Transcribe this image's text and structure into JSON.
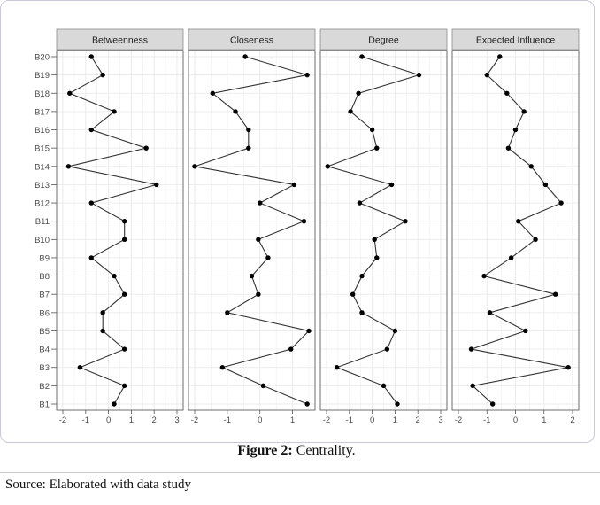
{
  "chart_data": {
    "type": "line",
    "orientation": "horizontal-profile",
    "categories": [
      "B20",
      "B19",
      "B18",
      "B17",
      "B16",
      "B15",
      "B14",
      "B13",
      "B12",
      "B11",
      "B10",
      "B9",
      "B8",
      "B7",
      "B6",
      "B5",
      "B4",
      "B3",
      "B2",
      "B1"
    ],
    "facets": [
      {
        "name": "Betweenness",
        "xlim": [
          -2,
          3
        ],
        "xticks": [
          "-2",
          "-1",
          "0",
          "1",
          "2",
          "3"
        ],
        "values": [
          -0.75,
          -0.25,
          -1.7,
          0.25,
          -0.75,
          1.65,
          -1.75,
          2.1,
          -0.75,
          0.7,
          0.7,
          -0.75,
          0.25,
          0.7,
          -0.25,
          -0.25,
          0.7,
          -1.25,
          0.7,
          0.25
        ]
      },
      {
        "name": "Closeness",
        "xlim": [
          -2,
          1.5
        ],
        "xticks": [
          "-2",
          "-1",
          "0",
          "1"
        ],
        "values": [
          -0.45,
          1.45,
          -1.45,
          -0.75,
          -0.35,
          -0.35,
          -2.0,
          1.05,
          0.0,
          1.35,
          -0.05,
          0.25,
          -0.25,
          -0.05,
          -1.0,
          1.5,
          0.95,
          -1.15,
          0.1,
          1.45
        ]
      },
      {
        "name": "Degree",
        "xlim": [
          -2,
          3
        ],
        "xticks": [
          "-2",
          "-1",
          "0",
          "1",
          "2",
          "3"
        ],
        "values": [
          -0.45,
          2.05,
          -0.6,
          -0.95,
          0.0,
          0.2,
          -1.95,
          0.85,
          -0.55,
          1.45,
          0.1,
          0.2,
          -0.45,
          -0.85,
          -0.45,
          1.0,
          0.65,
          -1.55,
          0.5,
          1.1
        ]
      },
      {
        "name": "Expected Influence",
        "xlim": [
          -2,
          2
        ],
        "xticks": [
          "-2",
          "-1",
          "0",
          "1",
          "2"
        ],
        "values": [
          -0.55,
          -1.0,
          -0.3,
          0.3,
          0.0,
          -0.25,
          0.55,
          1.05,
          1.6,
          0.1,
          0.7,
          -0.15,
          -1.1,
          1.4,
          -0.9,
          0.35,
          -1.55,
          1.85,
          -1.5,
          -0.8
        ]
      }
    ],
    "grid": true,
    "legend": "none"
  },
  "caption": {
    "label": "Figure 2:",
    "text": " Centrality."
  },
  "source": "Source: Elaborated with data study",
  "colors": {
    "strip": "#d9d9d9",
    "grid": "#ebebeb",
    "line": "#333333",
    "point": "#000000",
    "border": "#c9c9da"
  }
}
